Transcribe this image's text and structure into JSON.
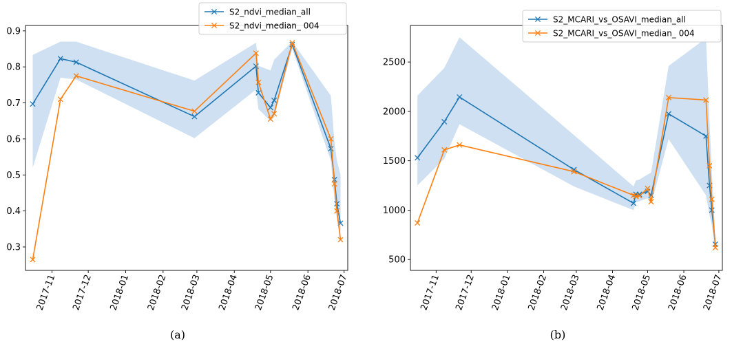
{
  "chart_data": [
    {
      "type": "line",
      "caption": "(a)",
      "x_tick_labels": [
        "2017-11",
        "2017-12",
        "2018-01",
        "2018-02",
        "2018-03",
        "2018-04",
        "2018-05",
        "2018-06",
        "2018-07"
      ],
      "y_ticks": [
        0.3,
        0.4,
        0.5,
        0.6,
        0.7,
        0.8,
        0.9
      ],
      "y_tick_labels": [
        "0.3",
        "0.4",
        "0.5",
        "0.6",
        "0.7",
        "0.8",
        "0.9"
      ],
      "xlim": [
        "2017-10-10",
        "2018-07-04"
      ],
      "ylim": [
        0.235,
        0.915
      ],
      "legend_position": "top-right",
      "series": [
        {
          "name": "S2_ndvi_median_all",
          "color": "#1f77b4",
          "x": [
            "2017-10-16",
            "2017-11-08",
            "2017-11-21",
            "2018-02-27",
            "2018-04-19",
            "2018-04-21",
            "2018-05-01",
            "2018-05-04",
            "2018-05-19",
            "2018-06-20",
            "2018-06-23",
            "2018-06-25",
            "2018-06-28"
          ],
          "y": [
            0.697,
            0.823,
            0.813,
            0.662,
            0.802,
            0.728,
            0.687,
            0.707,
            0.862,
            0.573,
            0.487,
            0.42,
            0.366
          ]
        },
        {
          "name": "S2_ndvi_median_   004",
          "color": "#ff7f0e",
          "x": [
            "2017-10-16",
            "2017-11-08",
            "2017-11-21",
            "2018-02-27",
            "2018-04-19",
            "2018-04-21",
            "2018-05-01",
            "2018-05-04",
            "2018-05-19",
            "2018-06-20",
            "2018-06-23",
            "2018-06-25",
            "2018-06-28"
          ],
          "y": [
            0.265,
            0.71,
            0.775,
            0.677,
            0.838,
            0.757,
            0.655,
            0.67,
            0.867,
            0.6,
            0.475,
            0.4,
            0.32
          ]
        }
      ],
      "band": {
        "color": "#c6dbef",
        "x": [
          "2017-10-16",
          "2017-11-08",
          "2017-11-21",
          "2018-02-27",
          "2018-04-19",
          "2018-04-21",
          "2018-05-01",
          "2018-05-04",
          "2018-05-19",
          "2018-06-20",
          "2018-06-23",
          "2018-06-25",
          "2018-06-28"
        ],
        "upper": [
          0.833,
          0.87,
          0.87,
          0.762,
          0.867,
          0.803,
          0.79,
          0.82,
          0.87,
          0.72,
          0.59,
          0.54,
          0.5
        ],
        "lower": [
          0.52,
          0.77,
          0.765,
          0.602,
          0.737,
          0.683,
          0.65,
          0.66,
          0.85,
          0.54,
          0.43,
          0.38,
          0.325
        ]
      }
    },
    {
      "type": "line",
      "caption": "(b)",
      "x_tick_labels": [
        "2017-11",
        "2017-12",
        "2018-01",
        "2018-02",
        "2018-03",
        "2018-04",
        "2018-05",
        "2018-06",
        "2018-07"
      ],
      "y_ticks": [
        500,
        1000,
        1500,
        2000,
        2500
      ],
      "y_tick_labels": [
        "500",
        "1000",
        "1500",
        "2000",
        "2500"
      ],
      "xlim": [
        "2017-10-10",
        "2018-07-04"
      ],
      "ylim": [
        390,
        2870
      ],
      "legend_position": "top-right",
      "series": [
        {
          "name": "S2_MCARI_vs_OSAVI_median_all",
          "color": "#1f77b4",
          "x": [
            "2017-10-16",
            "2017-11-08",
            "2017-11-21",
            "2018-02-27",
            "2018-04-19",
            "2018-04-21",
            "2018-04-24",
            "2018-05-01",
            "2018-05-04",
            "2018-05-19",
            "2018-06-20",
            "2018-06-23",
            "2018-06-25",
            "2018-06-28"
          ],
          "y": [
            1530,
            1895,
            2145,
            1410,
            1070,
            1160,
            1160,
            1190,
            1150,
            1975,
            1750,
            1250,
            1000,
            655
          ]
        },
        {
          "name": "S2_MCARI_vs_OSAVI_median_   004",
          "color": "#ff7f0e",
          "x": [
            "2017-10-16",
            "2017-11-08",
            "2017-11-21",
            "2018-02-27",
            "2018-04-19",
            "2018-04-21",
            "2018-04-24",
            "2018-05-01",
            "2018-05-04",
            "2018-05-19",
            "2018-06-20",
            "2018-06-23",
            "2018-06-25",
            "2018-06-28"
          ],
          "y": [
            870,
            1610,
            1660,
            1390,
            1150,
            1140,
            1145,
            1220,
            1085,
            2140,
            2115,
            1450,
            1110,
            620
          ]
        }
      ],
      "band": {
        "color": "#c6dbef",
        "x": [
          "2017-10-16",
          "2017-11-08",
          "2017-11-21",
          "2018-02-27",
          "2018-04-19",
          "2018-04-21",
          "2018-04-24",
          "2018-05-01",
          "2018-05-04",
          "2018-05-19",
          "2018-06-20",
          "2018-06-23",
          "2018-06-25",
          "2018-06-28"
        ],
        "upper": [
          2160,
          2440,
          2750,
          1760,
          1240,
          1300,
          1310,
          1360,
          1380,
          2460,
          2740,
          1900,
          1400,
          700
        ],
        "lower": [
          1250,
          1520,
          1870,
          1240,
          1000,
          1080,
          1090,
          1120,
          1060,
          1720,
          1150,
          950,
          850,
          580
        ]
      }
    }
  ]
}
